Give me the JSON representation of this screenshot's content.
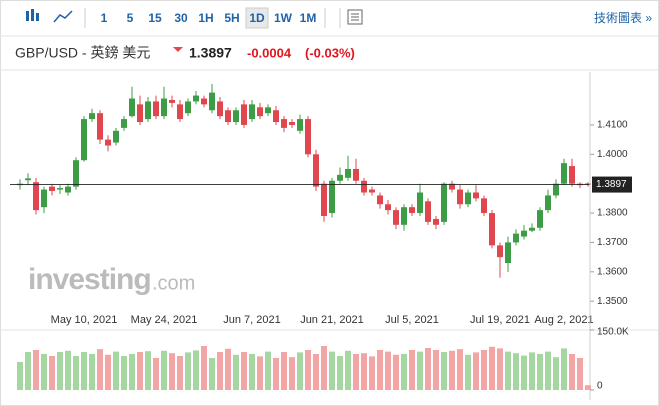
{
  "toolbar": {
    "intervals": [
      "1",
      "5",
      "15",
      "30",
      "1H",
      "5H",
      "1D",
      "1W",
      "1M"
    ],
    "active_index": 6,
    "tech_chart": "技術圖表 »"
  },
  "header": {
    "name": "GBP/USD - 英鎊 美元",
    "price": "1.3897",
    "change": "-0.0004",
    "change_pct": "(-0.03%)"
  },
  "watermark": {
    "brand": "investing",
    "suffix": ".com"
  },
  "chart_data": {
    "type": "candlestick",
    "categories": [
      null,
      null,
      null,
      null,
      null,
      null,
      null,
      null,
      "May 10, 2021",
      null,
      null,
      null,
      null,
      null,
      null,
      null,
      null,
      null,
      "May 24, 2021",
      null,
      null,
      null,
      null,
      null,
      null,
      null,
      null,
      null,
      null,
      "Jun 7, 2021",
      null,
      null,
      null,
      null,
      null,
      null,
      null,
      null,
      null,
      "Jun 21, 2021",
      null,
      null,
      null,
      null,
      null,
      null,
      null,
      null,
      null,
      "Jul 5, 2021",
      null,
      null,
      null,
      null,
      null,
      null,
      null,
      null,
      null,
      null,
      "Jul 19, 2021",
      null,
      null,
      null,
      null,
      null,
      null,
      null,
      "Aug 2, 2021",
      null,
      null,
      null
    ],
    "open": [
      1.3895,
      1.3912,
      1.3905,
      1.382,
      1.389,
      1.388,
      1.387,
      1.389,
      1.398,
      1.412,
      1.414,
      1.405,
      1.404,
      1.409,
      1.413,
      1.417,
      1.412,
      1.418,
      1.413,
      1.4185,
      1.417,
      1.414,
      1.418,
      1.419,
      1.415,
      1.418,
      1.415,
      1.411,
      1.417,
      1.412,
      1.416,
      1.414,
      1.415,
      1.412,
      1.411,
      1.408,
      1.412,
      1.4,
      1.39,
      1.38,
      1.391,
      1.392,
      1.395,
      1.391,
      1.388,
      1.386,
      1.383,
      1.381,
      1.376,
      1.382,
      1.38,
      1.384,
      1.378,
      1.377,
      1.39,
      1.388,
      1.383,
      1.387,
      1.385,
      1.38,
      1.369,
      1.363,
      1.37,
      1.372,
      1.374,
      1.375,
      1.381,
      1.386,
      1.39,
      1.396,
      1.39,
      1.3901
    ],
    "high": [
      1.3915,
      1.3935,
      1.392,
      1.389,
      1.39,
      1.3895,
      1.39,
      1.399,
      1.413,
      1.4155,
      1.415,
      1.4065,
      1.409,
      1.413,
      1.423,
      1.42,
      1.4195,
      1.42,
      1.423,
      1.42,
      1.4185,
      1.419,
      1.4215,
      1.42,
      1.424,
      1.4195,
      1.416,
      1.416,
      1.4185,
      1.4185,
      1.4175,
      1.417,
      1.4165,
      1.413,
      1.412,
      1.4135,
      1.413,
      1.4015,
      1.391,
      1.392,
      1.3955,
      1.3995,
      1.3985,
      1.392,
      1.389,
      1.387,
      1.3845,
      1.382,
      1.383,
      1.383,
      1.39,
      1.385,
      1.379,
      1.3905,
      1.391,
      1.3895,
      1.388,
      1.3895,
      1.386,
      1.381,
      1.37,
      1.372,
      1.3745,
      1.376,
      1.3765,
      1.382,
      1.388,
      1.3915,
      1.3985,
      1.3985,
      1.3905,
      1.3905
    ],
    "low": [
      1.388,
      1.3895,
      1.3795,
      1.38,
      1.386,
      1.3865,
      1.386,
      1.388,
      1.3975,
      1.411,
      1.4035,
      1.401,
      1.403,
      1.408,
      1.4125,
      1.41,
      1.411,
      1.412,
      1.412,
      1.416,
      1.411,
      1.413,
      1.417,
      1.416,
      1.414,
      1.412,
      1.41,
      1.41,
      1.409,
      1.411,
      1.412,
      1.413,
      1.41,
      1.4075,
      1.409,
      1.407,
      1.399,
      1.3875,
      1.377,
      1.3785,
      1.39,
      1.391,
      1.39,
      1.386,
      1.386,
      1.3815,
      1.3795,
      1.3745,
      1.374,
      1.379,
      1.379,
      1.376,
      1.3745,
      1.376,
      1.387,
      1.3815,
      1.382,
      1.384,
      1.379,
      1.368,
      1.358,
      1.36,
      1.369,
      1.371,
      1.3735,
      1.374,
      1.38,
      1.385,
      1.3895,
      1.389,
      1.3885,
      1.389
    ],
    "close": [
      1.39,
      1.3918,
      1.381,
      1.388,
      1.3875,
      1.3885,
      1.389,
      1.398,
      1.412,
      1.414,
      1.405,
      1.403,
      1.408,
      1.412,
      1.419,
      1.411,
      1.418,
      1.413,
      1.419,
      1.4175,
      1.412,
      1.418,
      1.42,
      1.417,
      1.421,
      1.413,
      1.411,
      1.415,
      1.41,
      1.417,
      1.413,
      1.416,
      1.411,
      1.409,
      1.41,
      1.412,
      1.4,
      1.389,
      1.379,
      1.391,
      1.393,
      1.395,
      1.391,
      1.387,
      1.387,
      1.383,
      1.381,
      1.376,
      1.382,
      1.38,
      1.387,
      1.377,
      1.376,
      1.39,
      1.388,
      1.383,
      1.387,
      1.385,
      1.38,
      1.369,
      1.365,
      1.37,
      1.373,
      1.374,
      1.375,
      1.381,
      1.386,
      1.39,
      1.397,
      1.39,
      1.3895,
      1.3897
    ],
    "up_color": "#3d9c46",
    "down_color": "#e0464e",
    "ylim": [
      1.347,
      1.427
    ],
    "yticks": [
      {
        "value": 1.41,
        "label": "1.4100"
      },
      {
        "value": 1.4,
        "label": "1.4000"
      },
      {
        "value": 1.38,
        "label": "1.3800"
      },
      {
        "value": 1.37,
        "label": "1.3700"
      },
      {
        "value": 1.36,
        "label": "1.3600"
      },
      {
        "value": 1.35,
        "label": "1.3500"
      }
    ],
    "price_line": {
      "value": 1.3897,
      "label": "1.3897"
    },
    "volume": {
      "values": [
        70000,
        95000,
        100000,
        90000,
        85000,
        95000,
        98000,
        85000,
        95000,
        90000,
        102000,
        88000,
        96000,
        85000,
        90000,
        95000,
        97000,
        80000,
        98000,
        92000,
        85000,
        94000,
        99000,
        110000,
        80000,
        95000,
        103000,
        88000,
        95000,
        90000,
        84000,
        96000,
        80000,
        95000,
        82000,
        94000,
        100000,
        90000,
        110000,
        96000,
        85000,
        98000,
        90000,
        92000,
        84000,
        100000,
        96000,
        88000,
        90000,
        100000,
        96000,
        105000,
        100000,
        95000,
        98000,
        102000,
        88000,
        94000,
        100000,
        108000,
        104000,
        96000,
        92000,
        86000,
        94000,
        90000,
        96000,
        82000,
        104000,
        90000,
        80000,
        12000
      ],
      "up_color": "#a5d6a2",
      "down_color": "#f3a5a5",
      "ylim": [
        0,
        150000
      ],
      "yticks": [
        {
          "value": 150000,
          "label": "150.0K"
        },
        0
      ]
    }
  }
}
